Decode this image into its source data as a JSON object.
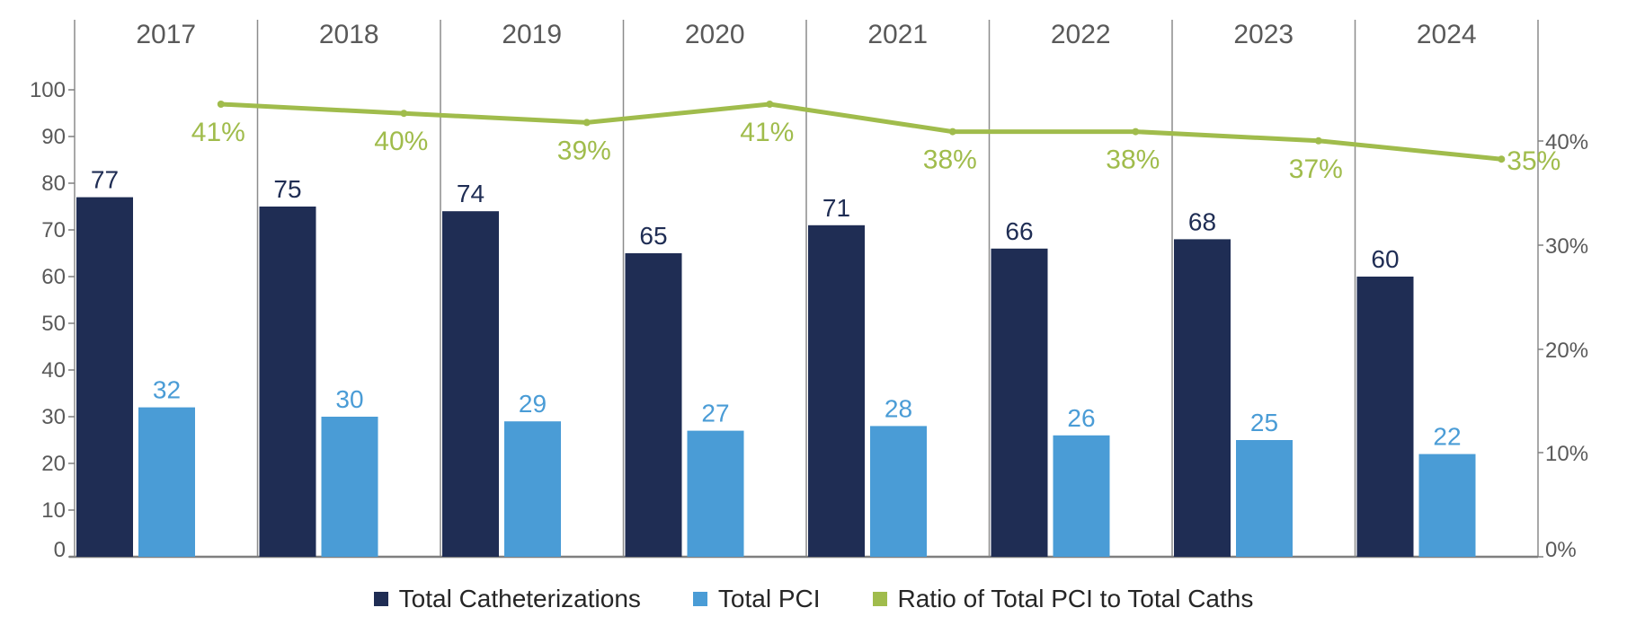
{
  "chart_data": {
    "type": "bar",
    "title": "",
    "categories": [
      "2017",
      "2018",
      "2019",
      "2020",
      "2021",
      "2022",
      "2023",
      "2024"
    ],
    "series": [
      {
        "name": "Total Catheterizations",
        "type": "bar",
        "axis": "left",
        "color": "#1f2d54",
        "values": [
          77,
          75,
          74,
          65,
          71,
          66,
          68,
          60
        ]
      },
      {
        "name": "Total PCI",
        "type": "bar",
        "axis": "left",
        "color": "#4a9cd6",
        "values": [
          32,
          30,
          29,
          27,
          28,
          26,
          25,
          22
        ]
      },
      {
        "name": "Ratio of Total PCI to Total Caths",
        "type": "line",
        "axis": "right",
        "color": "#a0bc4c",
        "values": [
          41,
          40,
          39,
          41,
          38,
          38,
          37,
          35
        ],
        "labels": [
          "41%",
          "40%",
          "39%",
          "41%",
          "38%",
          "38%",
          "37%",
          "35%"
        ]
      }
    ],
    "left_axis": {
      "ylim": [
        0,
        100
      ],
      "ticks": [
        "0",
        "10",
        "20",
        "30",
        "40",
        "50",
        "60",
        "70",
        "80",
        "90",
        "100"
      ]
    },
    "right_axis": {
      "ylim": [
        0,
        40
      ],
      "ticks": [
        "0%",
        "10%",
        "20%",
        "30%",
        "40%"
      ]
    },
    "xlabel": "",
    "ylabel": "",
    "grid": false,
    "legend_position": "bottom"
  },
  "legend": [
    {
      "label": "Total Catheterizations",
      "color": "#1f2d54"
    },
    {
      "label": "Total PCI",
      "color": "#4a9cd6"
    },
    {
      "label": "Ratio of Total PCI to Total Caths",
      "color": "#a0bc4c"
    }
  ]
}
